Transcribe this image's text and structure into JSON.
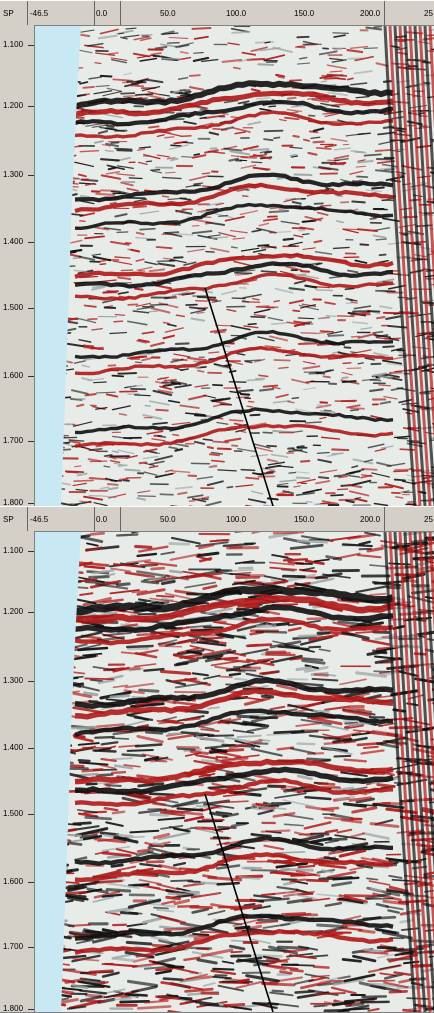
{
  "panels": [
    {
      "id": "top",
      "axis_label": "SP",
      "x_ticks": [
        "-46.5",
        "0.0",
        "50.0",
        "100.0",
        "150.0",
        "200.0",
        "25"
      ],
      "y_ticks": [
        "1.100",
        "1.200",
        "1.300",
        "1.400",
        "1.500",
        "1.600",
        "1.700",
        "1.800"
      ]
    },
    {
      "id": "bottom",
      "axis_label": "SP",
      "x_ticks": [
        "-46.5",
        "0.0",
        "50.0",
        "100.0",
        "150.0",
        "200.0",
        "25"
      ],
      "y_ticks": [
        "1.100",
        "1.200",
        "1.300",
        "1.400",
        "1.500",
        "1.600",
        "1.700",
        "1.800"
      ]
    }
  ],
  "colors": {
    "peak": "#b01818",
    "trough": "#101010",
    "background": "#e8ece8",
    "void": "#c8e8f4",
    "fault": "#000000"
  }
}
